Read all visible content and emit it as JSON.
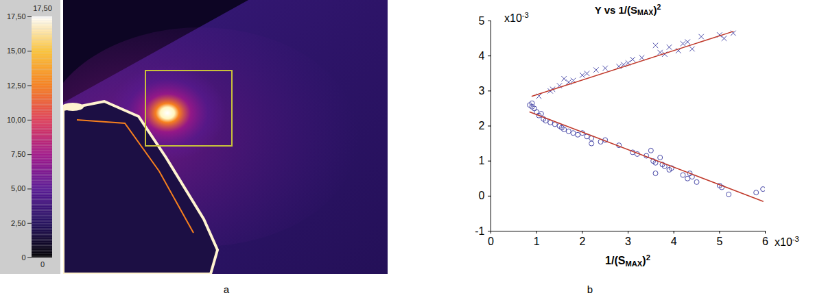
{
  "chart_data": [
    {
      "type": "image",
      "panel": "a",
      "colorbar": {
        "range": [
          0,
          17.5
        ],
        "ticks": [
          {
            "value": 0,
            "label": "0"
          },
          {
            "value": 2.5,
            "label": "2,50"
          },
          {
            "value": 5,
            "label": "5,00"
          },
          {
            "value": 7.5,
            "label": "7,50"
          },
          {
            "value": 10,
            "label": "10,00"
          },
          {
            "value": 12.5,
            "label": "12,50"
          },
          {
            "value": 15,
            "label": "15,00"
          },
          {
            "value": 17.5,
            "label": "17,50"
          }
        ],
        "top_label": "17,50",
        "bottom_label": "0",
        "colors": [
          "#000000",
          "#24105e",
          "#5a1a96",
          "#a3188a",
          "#e0405a",
          "#f7801e",
          "#fcc43a",
          "#ffffff"
        ]
      }
    },
    {
      "type": "scatter",
      "panel": "b",
      "title": [
        {
          "text": "Y vs 1/(S"
        },
        {
          "text": "MAX",
          "sub": true
        },
        {
          "text": ")"
        },
        {
          "text": "2",
          "sup": true
        }
      ],
      "x_label": [
        {
          "text": "1/(S"
        },
        {
          "text": "MAX",
          "sub": true
        },
        {
          "text": ")"
        },
        {
          "text": "2",
          "sup": true
        }
      ],
      "x_multiplier": [
        {
          "text": "x10"
        },
        {
          "text": "-3",
          "sup": true
        }
      ],
      "y_multiplier": [
        {
          "text": "x10"
        },
        {
          "text": "-3",
          "sup": true
        }
      ],
      "xlim": [
        0,
        6
      ],
      "xticks": [
        0,
        1,
        2,
        3,
        4,
        5,
        6
      ],
      "ylim": [
        -1,
        5
      ],
      "yticks": [
        -1,
        0,
        1,
        2,
        3,
        4,
        5
      ],
      "series": [
        {
          "marker": "x",
          "color": "#4a4aa8",
          "x": [
            1.05,
            1.3,
            1.35,
            1.5,
            1.6,
            1.7,
            1.8,
            2.0,
            2.1,
            2.3,
            2.5,
            2.8,
            2.9,
            3.0,
            3.1,
            3.3,
            3.6,
            3.7,
            3.8,
            3.9,
            4.1,
            4.2,
            4.3,
            4.4,
            4.6,
            5.0,
            5.1,
            5.3
          ],
          "y": [
            2.85,
            3.0,
            3.05,
            3.15,
            3.35,
            3.25,
            3.3,
            3.45,
            3.5,
            3.6,
            3.65,
            3.7,
            3.75,
            3.8,
            3.9,
            3.95,
            4.3,
            4.1,
            4.05,
            4.25,
            4.15,
            4.35,
            4.4,
            4.2,
            4.55,
            4.6,
            4.5,
            4.65
          ]
        },
        {
          "marker": "circle",
          "color": "#4a4aa8",
          "x": [
            0.85,
            0.9,
            0.95,
            0.9,
            1.0,
            1.05,
            1.1,
            1.15,
            1.2,
            1.3,
            1.4,
            1.5,
            1.55,
            1.6,
            1.7,
            1.8,
            1.9,
            2.0,
            2.1,
            2.2,
            2.2,
            2.4,
            2.5,
            2.8,
            3.1,
            3.2,
            3.4,
            3.5,
            3.55,
            3.6,
            3.6,
            3.7,
            3.75,
            3.8,
            3.9,
            3.95,
            4.2,
            4.3,
            4.35,
            4.4,
            4.5,
            5.0,
            5.05,
            5.2,
            5.8,
            5.95
          ],
          "y": [
            2.6,
            2.55,
            2.5,
            2.65,
            2.4,
            2.3,
            2.35,
            2.2,
            2.15,
            2.1,
            2.05,
            2.0,
            1.95,
            1.9,
            1.85,
            1.8,
            1.75,
            1.8,
            1.7,
            1.5,
            1.65,
            1.55,
            1.6,
            1.45,
            1.25,
            1.2,
            1.15,
            1.3,
            1.0,
            0.95,
            0.65,
            1.1,
            0.9,
            0.85,
            0.75,
            0.8,
            0.6,
            0.5,
            0.65,
            0.55,
            0.4,
            0.3,
            0.25,
            0.05,
            0.1,
            0.2
          ]
        },
        {
          "type": "line",
          "color": "#c0392b",
          "x": [
            0.9,
            5.3
          ],
          "y": [
            2.85,
            4.7
          ]
        },
        {
          "type": "line",
          "color": "#c0392b",
          "x": [
            0.85,
            5.95
          ],
          "y": [
            2.4,
            -0.15
          ]
        }
      ]
    }
  ]
}
